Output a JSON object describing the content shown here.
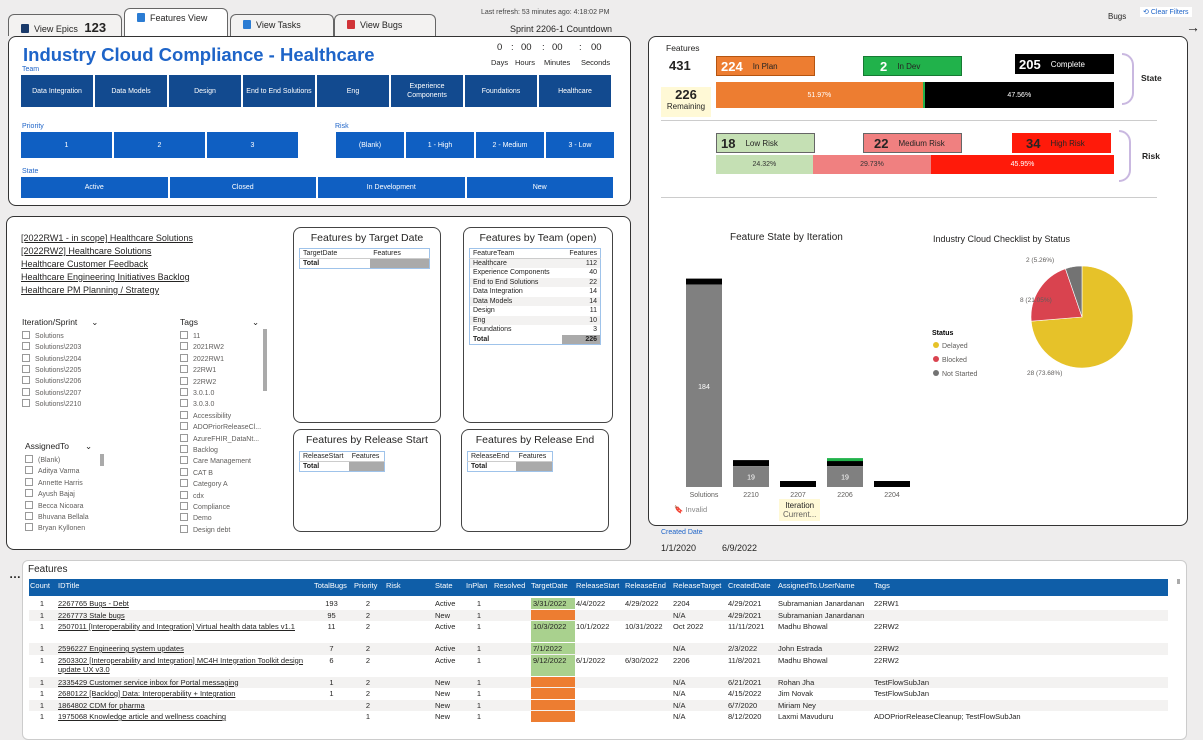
{
  "tabs": [
    {
      "label": "View Epics",
      "count": "123",
      "color": "#1a3a6a"
    },
    {
      "label": "Features View",
      "color": "#2b7cd3"
    },
    {
      "label": "View Tasks",
      "color": "#2b7cd3"
    },
    {
      "label": "View Bugs",
      "color": "#d13438"
    }
  ],
  "header": {
    "refresh": "Last refresh: 53 minutes ago:  4:18:02 PM",
    "sprint": "Sprint 2206-1 Countdown",
    "bugs": "Bugs",
    "clear_filters": "Clear Filters",
    "countdown": {
      "values": [
        "0",
        ":",
        "00",
        ":",
        "00",
        ":",
        "00"
      ],
      "units": [
        "Days",
        "Hours",
        "Minutes",
        "Seconds"
      ]
    }
  },
  "title": "Industry Cloud Compliance - Healthcare",
  "team_label": "Team",
  "teams": [
    "Data Integration",
    "Data Models",
    "Design",
    "End to End Solutions",
    "Eng",
    "Experience Components",
    "Foundations",
    "Healthcare"
  ],
  "priority_label": "Priority",
  "priorities": [
    "1",
    "2",
    "3"
  ],
  "risk_label": "Risk",
  "risks": [
    "(Blank)",
    "1 - High",
    "2 - Medium",
    "3 - Low"
  ],
  "state_label": "State",
  "states": [
    "Active",
    "Closed",
    "In Development",
    "New"
  ],
  "links": [
    "[2022RW1 - in scope] Healthcare Solutions",
    "[2022RW2] Healthcare Solutions",
    "Healthcare Customer Feedback",
    "Healthcare Engineering Initiatives Backlog",
    "Healthcare PM Planning / Strategy"
  ],
  "iteration": {
    "label": "Iteration/Sprint",
    "items": [
      "Solutions",
      "Solutions\\2203",
      "Solutions\\2204",
      "Solutions\\2205",
      "Solutions\\2206",
      "Solutions\\2207",
      "Solutions\\2210"
    ]
  },
  "tags": {
    "label": "Tags",
    "items": [
      "11",
      "2021RW2",
      "2022RW1",
      "22RW1",
      "22RW2",
      "3.0.1.0",
      "3.0.3.0",
      "Accessibility",
      "ADOPriorReleaseCl...",
      "AzureFHIR_DataNt...",
      "Backlog",
      "Care Management",
      "CAT B",
      "Category A",
      "cdx",
      "Compliance",
      "Demo",
      "Design debt"
    ]
  },
  "assigned": {
    "label": "AssignedTo",
    "items": [
      "(Blank)",
      "Aditya Varma",
      "Annette Harris",
      "Ayush Bajaj",
      "Becca Nicoara",
      "Bhuvana Bellala",
      "Bryan Kyllonen"
    ]
  },
  "by_target": {
    "title": "Features by Target Date",
    "col1": "TargetDate",
    "col2": "Features",
    "total": "Total"
  },
  "by_team": {
    "title": "Features by Team (open)",
    "col1": "FeatureTeam",
    "col2": "Features",
    "total": "Total",
    "total_value": "226",
    "rows": [
      [
        "Healthcare",
        "112"
      ],
      [
        "Experience Components",
        "40"
      ],
      [
        "End to End Solutions",
        "22"
      ],
      [
        "Data Integration",
        "14"
      ],
      [
        "Data Models",
        "14"
      ],
      [
        "Design",
        "11"
      ],
      [
        "Eng",
        "10"
      ],
      [
        "Foundations",
        "3"
      ]
    ]
  },
  "by_release_start": {
    "title": "Features by Release Start",
    "col1": "ReleaseStart",
    "col2": "Features",
    "total": "Total"
  },
  "by_release_end": {
    "title": "Features by Release End",
    "col1": "ReleaseEnd",
    "col2": "Features",
    "total": "Total"
  },
  "features_kpi": {
    "label": "Features",
    "value": "431",
    "remaining_value": "226",
    "remaining_label": "Remaining",
    "in_plan": {
      "value": "224",
      "label": "In Plan",
      "pct": "51.97%",
      "fraction": 0.5197,
      "color": "#ed7d31"
    },
    "in_dev": {
      "value": "2",
      "label": "In Dev",
      "pct": "",
      "fraction": 0.0046,
      "color": "#21b24b"
    },
    "complete": {
      "value": "205",
      "label": "Complete",
      "pct": "47.56%",
      "fraction": 0.4756,
      "color": "#000000"
    },
    "state_label": "State"
  },
  "risk_kpi": {
    "low": {
      "value": "18",
      "label": "Low Risk",
      "pct": "24.32%",
      "fraction": 0.2432,
      "color": "#c5e0b4"
    },
    "medium": {
      "value": "22",
      "label": "Medium Risk",
      "pct": "29.73%",
      "fraction": 0.2973,
      "color": "#f08080"
    },
    "high": {
      "value": "34",
      "label": "High Risk",
      "pct": "45.95%",
      "fraction": 0.4595,
      "color": "#ff1a0a"
    },
    "risk_label": "Risk"
  },
  "chart_data": [
    {
      "type": "bar",
      "title": "Feature State by Iteration",
      "xlabel": "Iteration",
      "categories": [
        "Solutions",
        "2210",
        "2207",
        "2206",
        "2204"
      ],
      "series": [
        {
          "name": "",
          "values": [
            184,
            19,
            0,
            19,
            0
          ]
        }
      ],
      "ylim": [
        0,
        200
      ]
    },
    {
      "type": "pie",
      "title": "Industry Cloud Checklist by Status",
      "legend_title": "Status",
      "labels": [
        "Delayed",
        "Blocked",
        "Not Started"
      ],
      "values": [
        28,
        8,
        2
      ],
      "value_labels": [
        "28 (73.68%)",
        "8 (21.05%)",
        "2 (5.26%)"
      ],
      "colors": [
        "#e6c229",
        "#d9434f",
        "#737373"
      ]
    }
  ],
  "iteration_footer": {
    "invalid": "Invalid",
    "current": "Current..."
  },
  "created_date": {
    "label": "Created Date",
    "from": "1/1/2020",
    "to": "6/9/2022"
  },
  "grid": {
    "title": "Features",
    "columns": [
      "Count",
      "IDTitle",
      "TotalBugs",
      "Priority",
      "Risk",
      "State",
      "InPlan",
      "Resolved",
      "TargetDate",
      "ReleaseStart",
      "ReleaseEnd",
      "ReleaseTarget",
      "CreatedDate",
      "AssignedTo.UserName",
      "Tags"
    ],
    "rows": [
      [
        "1",
        "2267765 Bugs - Debt",
        "193",
        "2",
        "",
        "Active",
        "1",
        "",
        "3/31/2022",
        "4/4/2022",
        "4/29/2022",
        "2204",
        "4/29/2021",
        "Subramanian Janardanan",
        "22RW1"
      ],
      [
        "1",
        "2267773 Stale bugs",
        "95",
        "2",
        "",
        "New",
        "1",
        "",
        "",
        "",
        "",
        "N/A",
        "4/29/2021",
        "Subramanian Janardanan",
        ""
      ],
      [
        "1",
        "2507011 [Interoperability and Integration] Virtual health data tables v1.1",
        "11",
        "2",
        "",
        "Active",
        "1",
        "",
        "10/3/2022",
        "10/1/2022",
        "10/31/2022",
        "Oct 2022",
        "11/11/2021",
        "Madhu Bhowal",
        "22RW2"
      ],
      [
        "1",
        "2596227 Engineering system updates",
        "7",
        "2",
        "",
        "Active",
        "1",
        "",
        "7/1/2022",
        "",
        "",
        "N/A",
        "2/3/2022",
        "John Estrada",
        "22RW2"
      ],
      [
        "1",
        "2503302 [Interoperability and Integration] MC4H Integration Toolkit design update UX v3.0",
        "6",
        "2",
        "",
        "Active",
        "1",
        "",
        "9/12/2022",
        "6/1/2022",
        "6/30/2022",
        "2206",
        "11/8/2021",
        "Madhu Bhowal",
        "22RW2"
      ],
      [
        "1",
        "2335429 Customer service inbox for Portal messaging",
        "1",
        "2",
        "",
        "New",
        "1",
        "",
        "",
        "",
        "",
        "N/A",
        "6/21/2021",
        "Rohan Jha",
        "TestFlowSubJan"
      ],
      [
        "1",
        "2680122 [Backlog] Data: Interoperability + Integration",
        "1",
        "2",
        "",
        "New",
        "1",
        "",
        "",
        "",
        "",
        "N/A",
        "4/15/2022",
        "Jim Novak",
        "TestFlowSubJan"
      ],
      [
        "1",
        "1864802 CDM for pharma",
        "",
        "2",
        "",
        "New",
        "1",
        "",
        "",
        "",
        "",
        "N/A",
        "6/7/2020",
        "Miriam Ney",
        ""
      ],
      [
        "1",
        "1975068 Knowledge article and wellness coaching",
        "",
        "1",
        "",
        "New",
        "1",
        "",
        "",
        "",
        "",
        "N/A",
        "8/12/2020",
        "Laxmi Mavuduru",
        "ADOPriorReleaseCleanup; TestFlowSubJan"
      ]
    ],
    "target_colors": [
      "#a9d18e",
      "#ed7d31",
      "#a9d18e",
      "#a9d18e",
      "#a9d18e",
      "#ed7d31",
      "#ed7d31",
      "#ed7d31",
      "#ed7d31"
    ]
  }
}
